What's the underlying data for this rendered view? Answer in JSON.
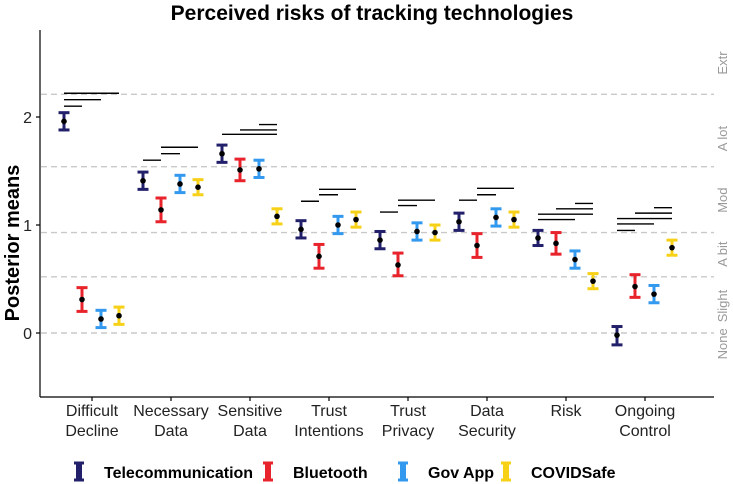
{
  "chart_data": {
    "type": "errorbar",
    "title": "Perceived risks of tracking technologies",
    "ylabel": "Posterior means",
    "ylim": [
      -0.3,
      2.75
    ],
    "yticks": [
      0,
      1,
      2
    ],
    "categories": [
      [
        "Difficult",
        "Decline"
      ],
      [
        "Necessary",
        "Data"
      ],
      [
        "Sensitive",
        "Data"
      ],
      [
        "Trust",
        "Intentions"
      ],
      [
        "Trust",
        "Privacy"
      ],
      [
        "Data",
        "Security"
      ],
      [
        "Risk"
      ],
      [
        "Ongoing",
        "Control"
      ]
    ],
    "levels": [
      {
        "label": "None",
        "y": -0.1,
        "line": null
      },
      {
        "label": "Slight",
        "y": 0.25,
        "line": 0.52
      },
      {
        "label": "A bit",
        "y": 0.73,
        "line": 0.93
      },
      {
        "label": "Mod",
        "y": 1.23,
        "line": 1.54
      },
      {
        "label": "A lot",
        "y": 1.8,
        "line": 2.21
      },
      {
        "label": "Extr",
        "y": 2.5,
        "line": null
      }
    ],
    "series": [
      {
        "name": "Telecommunication",
        "color": "#23206b",
        "values": [
          {
            "mean": 1.96,
            "lo": 1.88,
            "hi": 2.04
          },
          {
            "mean": 1.41,
            "lo": 1.33,
            "hi": 1.49
          },
          {
            "mean": 1.66,
            "lo": 1.58,
            "hi": 1.74
          },
          {
            "mean": 0.96,
            "lo": 0.88,
            "hi": 1.04
          },
          {
            "mean": 0.86,
            "lo": 0.78,
            "hi": 0.94
          },
          {
            "mean": 1.03,
            "lo": 0.95,
            "hi": 1.11
          },
          {
            "mean": 0.88,
            "lo": 0.81,
            "hi": 0.95
          },
          {
            "mean": -0.02,
            "lo": -0.11,
            "hi": 0.06
          }
        ]
      },
      {
        "name": "Bluetooth",
        "color": "#e8232b",
        "values": [
          {
            "mean": 0.31,
            "lo": 0.2,
            "hi": 0.42
          },
          {
            "mean": 1.14,
            "lo": 1.03,
            "hi": 1.25
          },
          {
            "mean": 1.51,
            "lo": 1.41,
            "hi": 1.61
          },
          {
            "mean": 0.71,
            "lo": 0.6,
            "hi": 0.82
          },
          {
            "mean": 0.63,
            "lo": 0.53,
            "hi": 0.74
          },
          {
            "mean": 0.81,
            "lo": 0.7,
            "hi": 0.92
          },
          {
            "mean": 0.83,
            "lo": 0.73,
            "hi": 0.93
          },
          {
            "mean": 0.43,
            "lo": 0.33,
            "hi": 0.54
          }
        ]
      },
      {
        "name": "Gov App",
        "color": "#3399ee",
        "values": [
          {
            "mean": 0.13,
            "lo": 0.05,
            "hi": 0.21
          },
          {
            "mean": 1.38,
            "lo": 1.3,
            "hi": 1.46
          },
          {
            "mean": 1.52,
            "lo": 1.44,
            "hi": 1.6
          },
          {
            "mean": 1.0,
            "lo": 0.92,
            "hi": 1.08
          },
          {
            "mean": 0.94,
            "lo": 0.86,
            "hi": 1.02
          },
          {
            "mean": 1.07,
            "lo": 0.99,
            "hi": 1.15
          },
          {
            "mean": 0.68,
            "lo": 0.6,
            "hi": 0.76
          },
          {
            "mean": 0.36,
            "lo": 0.28,
            "hi": 0.44
          }
        ]
      },
      {
        "name": "COVIDSafe",
        "color": "#f7d117",
        "values": [
          {
            "mean": 0.16,
            "lo": 0.08,
            "hi": 0.24
          },
          {
            "mean": 1.35,
            "lo": 1.28,
            "hi": 1.42
          },
          {
            "mean": 1.08,
            "lo": 1.01,
            "hi": 1.15
          },
          {
            "mean": 1.05,
            "lo": 0.98,
            "hi": 1.12
          },
          {
            "mean": 0.93,
            "lo": 0.86,
            "hi": 1.0
          },
          {
            "mean": 1.05,
            "lo": 0.98,
            "hi": 1.12
          },
          {
            "mean": 0.48,
            "lo": 0.41,
            "hi": 0.55
          },
          {
            "mean": 0.79,
            "lo": 0.72,
            "hi": 0.86
          }
        ]
      }
    ],
    "comparisons": [
      [
        {
          "y": 2.1,
          "from": 0,
          "to": 1
        },
        {
          "y": 2.16,
          "from": 0,
          "to": 2
        },
        {
          "y": 2.22,
          "from": 0,
          "to": 3
        }
      ],
      [
        {
          "y": 1.6,
          "from": 0,
          "to": 1
        },
        {
          "y": 1.66,
          "from": 1,
          "to": 2
        },
        {
          "y": 1.72,
          "from": 1,
          "to": 3
        }
      ],
      [
        {
          "y": 1.84,
          "from": 0,
          "to": 3
        },
        {
          "y": 1.88,
          "from": 1,
          "to": 3
        },
        {
          "y": 1.93,
          "from": 2,
          "to": 3
        }
      ],
      [
        {
          "y": 1.22,
          "from": 0,
          "to": 1
        },
        {
          "y": 1.28,
          "from": 1,
          "to": 2
        },
        {
          "y": 1.33,
          "from": 1,
          "to": 3
        }
      ],
      [
        {
          "y": 1.12,
          "from": 0,
          "to": 1
        },
        {
          "y": 1.18,
          "from": 1,
          "to": 2
        },
        {
          "y": 1.23,
          "from": 1,
          "to": 3
        }
      ],
      [
        {
          "y": 1.23,
          "from": 0,
          "to": 1
        },
        {
          "y": 1.28,
          "from": 1,
          "to": 2
        },
        {
          "y": 1.34,
          "from": 1,
          "to": 3
        }
      ],
      [
        {
          "y": 1.05,
          "from": 0,
          "to": 2
        },
        {
          "y": 1.1,
          "from": 0,
          "to": 3
        },
        {
          "y": 1.15,
          "from": 1,
          "to": 3
        },
        {
          "y": 1.2,
          "from": 2,
          "to": 3
        }
      ],
      [
        {
          "y": 0.95,
          "from": 0,
          "to": 1
        },
        {
          "y": 1.01,
          "from": 0,
          "to": 2
        },
        {
          "y": 1.06,
          "from": 0,
          "to": 3
        },
        {
          "y": 1.11,
          "from": 1,
          "to": 3
        },
        {
          "y": 1.16,
          "from": 2,
          "to": 3
        }
      ]
    ],
    "grid": "dashed horizontal at level boundaries",
    "legend": "bottom"
  }
}
